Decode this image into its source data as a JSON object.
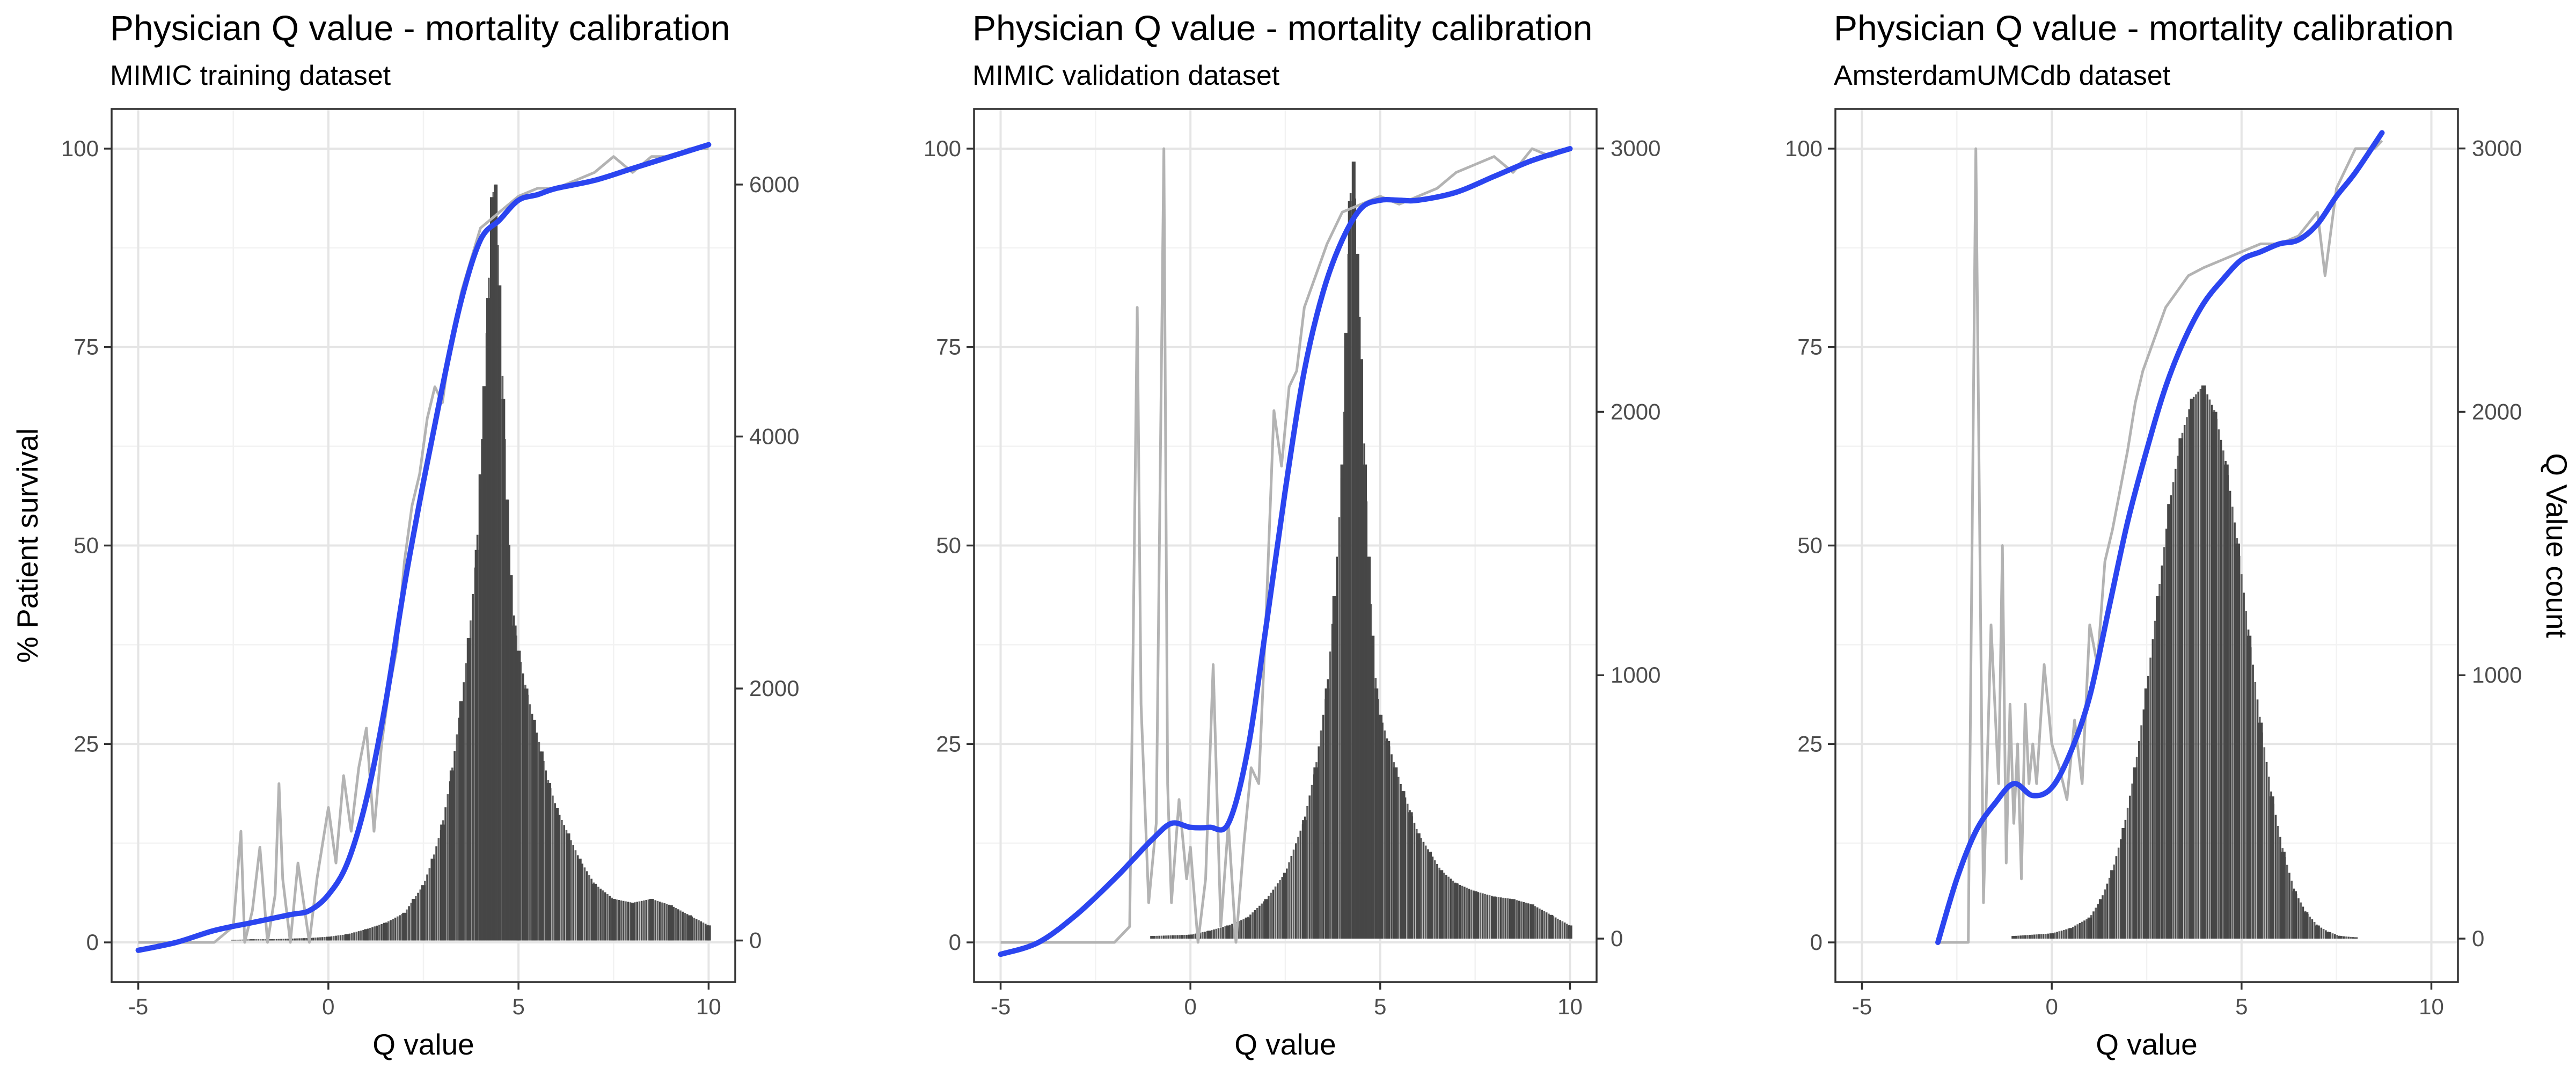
{
  "colors": {
    "smooth_line": "#2b45f0",
    "raw_line": "#b3b3b3",
    "bars": "#474747",
    "grid_major": "#e5e5e5",
    "grid_minor": "#f2f2f2",
    "panel_border": "#333333",
    "text": "#000000",
    "tick_text": "#4d4d4d"
  },
  "chart_data": [
    {
      "type": "line",
      "title": "Physician Q value - mortality calibration",
      "subtitle": "MIMIC training dataset",
      "xlabel": "Q value",
      "ylabel": "% Patient survival",
      "y2label": "",
      "xlim": [
        -5.7,
        10.7
      ],
      "ylim": [
        -5,
        105
      ],
      "y2lim": [
        -330,
        6600
      ],
      "xticks": [
        -5,
        0,
        5,
        10
      ],
      "xtick_labels": [
        "-5",
        "0",
        "5",
        "10"
      ],
      "yticks": [
        0,
        25,
        50,
        75,
        100
      ],
      "ytick_labels": [
        "0",
        "25",
        "50",
        "75",
        "100"
      ],
      "y2ticks": [
        0,
        2000,
        4000,
        6000
      ],
      "y2tick_labels": [
        "0",
        "2000",
        "4000",
        "6000"
      ],
      "grid": true,
      "smooth_series": {
        "x": [
          -5,
          -4,
          -3,
          -2,
          -1,
          -0.5,
          0,
          0.5,
          1,
          1.5,
          2,
          2.5,
          3,
          3.5,
          4,
          4.5,
          5,
          5.5,
          6,
          7,
          8,
          9,
          10
        ],
        "y": [
          -1,
          0,
          1.5,
          2.5,
          3.5,
          4,
          6,
          10,
          18,
          30,
          45,
          58,
          70,
          81,
          88.5,
          91,
          93.5,
          94.2,
          95,
          96,
          97.5,
          99,
          100.5
        ]
      },
      "raw_series": {
        "x": [
          -5,
          -3,
          -2.5,
          -2.3,
          -2.2,
          -2,
          -1.8,
          -1.6,
          -1.4,
          -1.3,
          -1.2,
          -1,
          -0.8,
          -0.5,
          -0.3,
          0,
          0.2,
          0.4,
          0.6,
          0.8,
          1,
          1.2,
          1.4,
          1.6,
          1.8,
          2,
          2.2,
          2.4,
          2.6,
          2.8,
          3,
          3.2,
          3.5,
          4,
          4.5,
          5,
          5.5,
          6,
          6.5,
          7,
          7.5,
          8,
          8.5,
          9,
          9.5,
          10
        ],
        "y": [
          0,
          0,
          2,
          14,
          0,
          4,
          12,
          0,
          6,
          20,
          8,
          0,
          10,
          0,
          8,
          17,
          10,
          21,
          14,
          22,
          27,
          14,
          25,
          32,
          37,
          48,
          55,
          59,
          66,
          70,
          68,
          75,
          82,
          90,
          92,
          94,
          95,
          95,
          96,
          97,
          99,
          97,
          99,
          99,
          100,
          100
        ]
      },
      "histogram": {
        "x": [
          -2.5,
          -2,
          -1.5,
          -1,
          -0.5,
          0,
          0.5,
          1,
          1.5,
          2,
          2.25,
          2.5,
          2.75,
          3,
          3.25,
          3.5,
          3.7,
          3.9,
          4,
          4.1,
          4.2,
          4.3,
          4.4,
          4.5,
          4.6,
          4.7,
          4.8,
          4.9,
          5,
          5.2,
          5.4,
          5.6,
          5.8,
          6,
          6.3,
          6.6,
          7,
          7.5,
          8,
          8.5,
          9,
          9.5,
          10
        ],
        "counts": [
          5,
          10,
          10,
          15,
          20,
          30,
          50,
          90,
          140,
          220,
          330,
          440,
          650,
          920,
          1350,
          1900,
          2400,
          3100,
          3700,
          4400,
          5100,
          5900,
          6000,
          5200,
          4300,
          3500,
          2900,
          2500,
          2300,
          2000,
          1750,
          1500,
          1250,
          1050,
          850,
          650,
          450,
          330,
          300,
          330,
          280,
          200,
          120
        ]
      }
    },
    {
      "type": "line",
      "title": "Physician Q value - mortality calibration",
      "subtitle": "MIMIC validation dataset",
      "xlabel": "Q value",
      "ylabel": "",
      "y2label": "",
      "xlim": [
        -5.7,
        10.7
      ],
      "ylim": [
        -5,
        105
      ],
      "y2lim": [
        -165,
        3150
      ],
      "xticks": [
        -5,
        0,
        5,
        10
      ],
      "xtick_labels": [
        "-5",
        "0",
        "5",
        "10"
      ],
      "yticks": [
        0,
        25,
        50,
        75,
        100
      ],
      "ytick_labels": [
        "0",
        "25",
        "50",
        "75",
        "100"
      ],
      "y2ticks": [
        0,
        1000,
        2000,
        3000
      ],
      "y2tick_labels": [
        "0",
        "1000",
        "2000",
        "3000"
      ],
      "grid": true,
      "smooth_series": {
        "x": [
          -5,
          -4,
          -3,
          -2,
          -1.5,
          -1,
          -0.5,
          0,
          0.5,
          1,
          1.5,
          2,
          2.5,
          3,
          3.5,
          4,
          4.5,
          5,
          5.5,
          6,
          7,
          8,
          9,
          10
        ],
        "y": [
          -1.5,
          0,
          3.5,
          8,
          10.5,
          13,
          15,
          14.5,
          14.5,
          15,
          24,
          40,
          57,
          72,
          82,
          88.5,
          92.5,
          93.5,
          93.5,
          93.5,
          94.5,
          96.5,
          98.5,
          100
        ]
      },
      "raw_series": {
        "x": [
          -5,
          -2,
          -1.6,
          -1.4,
          -1.3,
          -1.1,
          -0.9,
          -0.7,
          -0.6,
          -0.5,
          -0.3,
          -0.1,
          0,
          0.2,
          0.4,
          0.6,
          0.8,
          1,
          1.2,
          1.4,
          1.6,
          1.8,
          2,
          2.2,
          2.4,
          2.6,
          2.8,
          3,
          3.3,
          3.6,
          4,
          4.5,
          5,
          5.5,
          6,
          6.5,
          7,
          7.5,
          8,
          8.5,
          9,
          9.5,
          10
        ],
        "y": [
          0,
          0,
          2,
          80,
          30,
          5,
          15,
          100,
          20,
          5,
          18,
          8,
          12,
          0,
          8,
          35,
          2,
          15,
          0,
          12,
          22,
          20,
          42,
          67,
          60,
          70,
          72,
          80,
          84,
          88,
          92,
          93,
          94,
          93,
          94,
          95,
          97,
          98,
          99,
          97,
          100,
          99,
          100
        ]
      },
      "histogram": {
        "x": [
          -1,
          0,
          0.5,
          1,
          1.5,
          2,
          2.5,
          3,
          3.3,
          3.6,
          3.8,
          4,
          4.1,
          4.2,
          4.3,
          4.4,
          4.5,
          4.6,
          4.7,
          4.8,
          4.9,
          5,
          5.2,
          5.4,
          5.6,
          5.8,
          6,
          6.3,
          6.6,
          7,
          7.5,
          8,
          8.5,
          9,
          9.5,
          10
        ],
        "counts": [
          10,
          15,
          30,
          50,
          80,
          150,
          250,
          450,
          650,
          950,
          1300,
          1800,
          2300,
          2800,
          2950,
          2600,
          2200,
          1800,
          1450,
          1150,
          950,
          850,
          750,
          650,
          560,
          480,
          400,
          330,
          260,
          210,
          180,
          160,
          150,
          130,
          90,
          50
        ]
      }
    },
    {
      "type": "line",
      "title": "Physician Q value - mortality calibration",
      "subtitle": "AmsterdamUMCdb dataset",
      "xlabel": "Q value",
      "ylabel": "",
      "y2label": "Q Value count",
      "xlim": [
        -5.7,
        10.7
      ],
      "ylim": [
        -5,
        105
      ],
      "y2lim": [
        -165,
        3150
      ],
      "xticks": [
        -5,
        0,
        5,
        10
      ],
      "xtick_labels": [
        "-5",
        "0",
        "5",
        "10"
      ],
      "yticks": [
        0,
        25,
        50,
        75,
        100
      ],
      "ytick_labels": [
        "0",
        "25",
        "50",
        "75",
        "100"
      ],
      "y2ticks": [
        0,
        1000,
        2000,
        3000
      ],
      "y2tick_labels": [
        "0",
        "1000",
        "2000",
        "3000"
      ],
      "grid": true,
      "smooth_series": {
        "x": [
          -3,
          -2.5,
          -2,
          -1.5,
          -1,
          -0.5,
          0,
          0.5,
          1,
          1.5,
          2,
          2.5,
          3,
          3.5,
          4,
          4.5,
          5,
          5.5,
          6,
          6.5,
          7,
          7.5,
          8,
          8.7
        ],
        "y": [
          0,
          8,
          14,
          17.5,
          20,
          18.5,
          19.5,
          24,
          31,
          42,
          53,
          62,
          70,
          76,
          80.5,
          83.5,
          86,
          87,
          88,
          88.5,
          90.5,
          94,
          97,
          102
        ]
      },
      "raw_series": {
        "x": [
          -3,
          -2.2,
          -2,
          -1.8,
          -1.6,
          -1.4,
          -1.3,
          -1.2,
          -1.1,
          -1,
          -0.9,
          -0.8,
          -0.7,
          -0.6,
          -0.5,
          -0.4,
          -0.2,
          0,
          0.2,
          0.4,
          0.6,
          0.8,
          1,
          1.2,
          1.4,
          1.6,
          1.8,
          2,
          2.2,
          2.4,
          2.7,
          3,
          3.3,
          3.6,
          4,
          4.5,
          5,
          5.5,
          6,
          6.5,
          7,
          7.2,
          7.5,
          8,
          8.5,
          8.7
        ],
        "y": [
          0,
          0,
          100,
          5,
          40,
          20,
          50,
          10,
          30,
          15,
          25,
          8,
          30,
          20,
          25,
          20,
          35,
          25,
          22,
          18,
          28,
          20,
          40,
          35,
          48,
          52,
          57,
          62,
          68,
          72,
          76,
          80,
          82,
          84,
          85,
          86,
          87,
          88,
          88,
          89,
          92,
          84,
          95,
          100,
          100,
          101
        ]
      },
      "histogram": {
        "x": [
          -1,
          0,
          0.5,
          1,
          1.3,
          1.6,
          1.9,
          2.2,
          2.5,
          2.8,
          3.1,
          3.4,
          3.7,
          4,
          4.3,
          4.6,
          4.9,
          5.2,
          5.5,
          5.8,
          6.1,
          6.4,
          6.7,
          7,
          7.3,
          7.6,
          8
        ],
        "counts": [
          10,
          20,
          40,
          80,
          150,
          260,
          420,
          650,
          950,
          1300,
          1650,
          1900,
          2050,
          2100,
          2000,
          1800,
          1500,
          1150,
          820,
          540,
          330,
          180,
          100,
          50,
          25,
          10,
          5
        ]
      }
    }
  ]
}
